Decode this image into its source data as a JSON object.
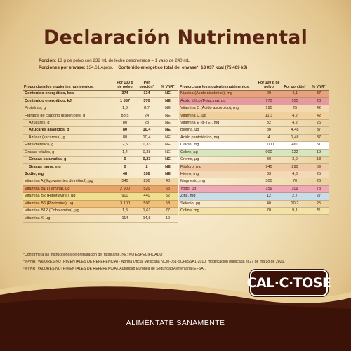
{
  "title": "Declaración Nutrimental",
  "portion_label": "Porción:",
  "portion_text": "13 g de polvo con 232 mL de leche descremada = 1 vaso de 240 mL",
  "portions_label": "Porciones por envase:",
  "portions_text": "134,61 Aprox.",
  "energy_label": "Contenido energético total del envase*:",
  "energy_text": "18 037 kcal  (75 469 kJ)",
  "headers": {
    "name": "Proporciona los siguientes nutrimentos:",
    "per100": "Por 100 g de polvo",
    "portion": "Por porción*",
    "vnr": "% VNR*"
  },
  "left_rows": [
    {
      "name": "Contenido energético, kcal",
      "per100": "374",
      "portion": "134",
      "vnr": "NE",
      "bold": true,
      "bg": ""
    },
    {
      "name": "Contenido energético, kJ",
      "per100": "1 587",
      "portion": "570",
      "vnr": "NE",
      "bold": true,
      "bg": ""
    },
    {
      "name": "Proteínas, g",
      "per100": "1,8",
      "portion": "8,7",
      "vnr": "NE",
      "bg": ""
    },
    {
      "name": "Hidratos de carbono disponibles, g",
      "per100": "88,5",
      "portion": "24",
      "vnr": "NE",
      "bg": ""
    },
    {
      "name": "Azúcares, g",
      "per100": "80",
      "portion": "23",
      "vnr": "NE",
      "indent": true,
      "bg": ""
    },
    {
      "name": "Azúcares añadidos, g",
      "per100": "80",
      "portion": "10,4",
      "vnr": "NE",
      "indent": true,
      "bold": true,
      "bg": ""
    },
    {
      "name": "Azúcar (sacarosa), g",
      "per100": "80",
      "portion": "10,4",
      "vnr": "NE",
      "indent": true,
      "bg": ""
    },
    {
      "name": "Fibra dietética, g",
      "per100": "2,5",
      "portion": "0,33",
      "vnr": "NE",
      "bg": ""
    },
    {
      "name": "Grasas totales, g",
      "per100": "1,4",
      "portion": "0,38",
      "vnr": "NE",
      "bg": ""
    },
    {
      "name": "Grasas saturadas, g",
      "per100": "0",
      "portion": "0,23",
      "vnr": "NE",
      "indent": true,
      "bold": true,
      "bg": ""
    },
    {
      "name": "Grasas trans, mg",
      "per100": "0",
      "portion": "2",
      "vnr": "NE",
      "indent": true,
      "bold": true,
      "bg": ""
    },
    {
      "name": "Sodio, mg",
      "per100": "48",
      "portion": "108",
      "vnr": "NE",
      "bold": true,
      "bg": ""
    },
    {
      "name": "Vitamina A (Equivalentes de retinol), µg",
      "per100": "540",
      "portion": "230",
      "vnr": "40",
      "bg": "#f1d6a6"
    },
    {
      "name": "Vitamina B1 (Tiamina), µg",
      "per100": "2 900",
      "portion": "520",
      "vnr": "65",
      "bg": "#e8a368"
    },
    {
      "name": "Vitamina B2 (Riboflavina), µg",
      "per100": "900",
      "portion": "440",
      "vnr": "52",
      "bg": "#ede08e"
    },
    {
      "name": "Vitamina B6 (Piridoxina), µg",
      "per100": "3 100",
      "portion": "590",
      "vnr": "53",
      "bg": "#efc07a"
    },
    {
      "name": "Vitamina B12 (Cobalamina), µg",
      "per100": "1,3",
      "portion": "1,61",
      "vnr": "77",
      "bg": "#f3d9a8"
    },
    {
      "name": "Vitamina K, µg",
      "per100": "114",
      "portion": "14,8",
      "vnr": "19",
      "bg": ""
    }
  ],
  "right_rows": [
    {
      "name": "Niacina (Ácido nicotínico), mg",
      "per100": "29",
      "portion": "4,1",
      "vnr": "37",
      "bg": "#e7a37e"
    },
    {
      "name": "Ácido fólico (Folacina), µg",
      "per100": "770",
      "portion": "105",
      "vnr": "28",
      "bg": "#e59aa0"
    },
    {
      "name": "Vitamina C (Ácido ascórbico), mg",
      "per100": "190",
      "portion": "25",
      "vnr": "42",
      "bg": "#f3d9b0"
    },
    {
      "name": "Vitamina D, µg",
      "per100": "11,3",
      "portion": "4,2",
      "vnr": "42",
      "bg": "#f0d19e"
    },
    {
      "name": "Vitamina E (α-TE), mg",
      "per100": "32",
      "portion": "4,2",
      "vnr": "26",
      "bg": ""
    },
    {
      "name": "Biotina, µg",
      "per100": "80",
      "portion": "4,48",
      "vnr": "37",
      "bg": ""
    },
    {
      "name": "Ácido pantoténico, mg",
      "per100": "4",
      "portion": "1,48",
      "vnr": "37",
      "bg": ""
    },
    {
      "name": "Calcio, mg",
      "per100": "1 000",
      "portion": "460",
      "vnr": "51",
      "bg": "#ffffff"
    },
    {
      "name": "Cobre, µg",
      "per100": "900",
      "portion": "122",
      "vnr": "19",
      "bg": "#d8e6c0"
    },
    {
      "name": "Cromo, µg",
      "per100": "30",
      "portion": "3,9",
      "vnr": "18",
      "bg": ""
    },
    {
      "name": "Fósforo, mg",
      "per100": "940",
      "portion": "290",
      "vnr": "59",
      "bg": "#eec9a4"
    },
    {
      "name": "Hierro, mg",
      "per100": "33",
      "portion": "4,3",
      "vnr": "25",
      "bg": "#f3d9b6"
    },
    {
      "name": "Magnesio, mg",
      "per100": "300",
      "portion": "70",
      "vnr": "26",
      "bg": ""
    },
    {
      "name": "Yodo, µg",
      "per100": "159",
      "portion": "109",
      "vnr": "73",
      "bg": "#efa8b6"
    },
    {
      "name": "Zinc, mg",
      "per100": "12",
      "portion": "2,7",
      "vnr": "27",
      "bg": "#c6ddea"
    },
    {
      "name": "Selenio, µg",
      "per100": "40",
      "portion": "10,2",
      "vnr": "25",
      "bg": ""
    },
    {
      "name": "Colina, mg",
      "per100": "70",
      "portion": "9,1",
      "vnr": "5¹",
      "bg": "#f3e3a6"
    }
  ],
  "footnotes": [
    "*Conforme a las instrucciones de preparación del fabricante.   NE: NO ESPECIFICADO",
    "*%VNR (VALORES NUTRIMENTALES DE REFERENCIA) - Norma Oficial Mexicana NOM-051-SCFI/SSA1-2010, modificación publicada el 27 de marzo de 2020.",
    "¹%VNR (VALORES NUTRIMENTALES DE REFERENCIA). Autoridad Europea de Seguridad Alimentaria (EFSA)."
  ],
  "logo_text": "CAL·C·TOSE",
  "slogan": "ALIMÉNTATE SANAMENTE",
  "colors": {
    "brown": "#5a2412",
    "dark_brown": "#3a1208",
    "gold": "#c9a567"
  }
}
